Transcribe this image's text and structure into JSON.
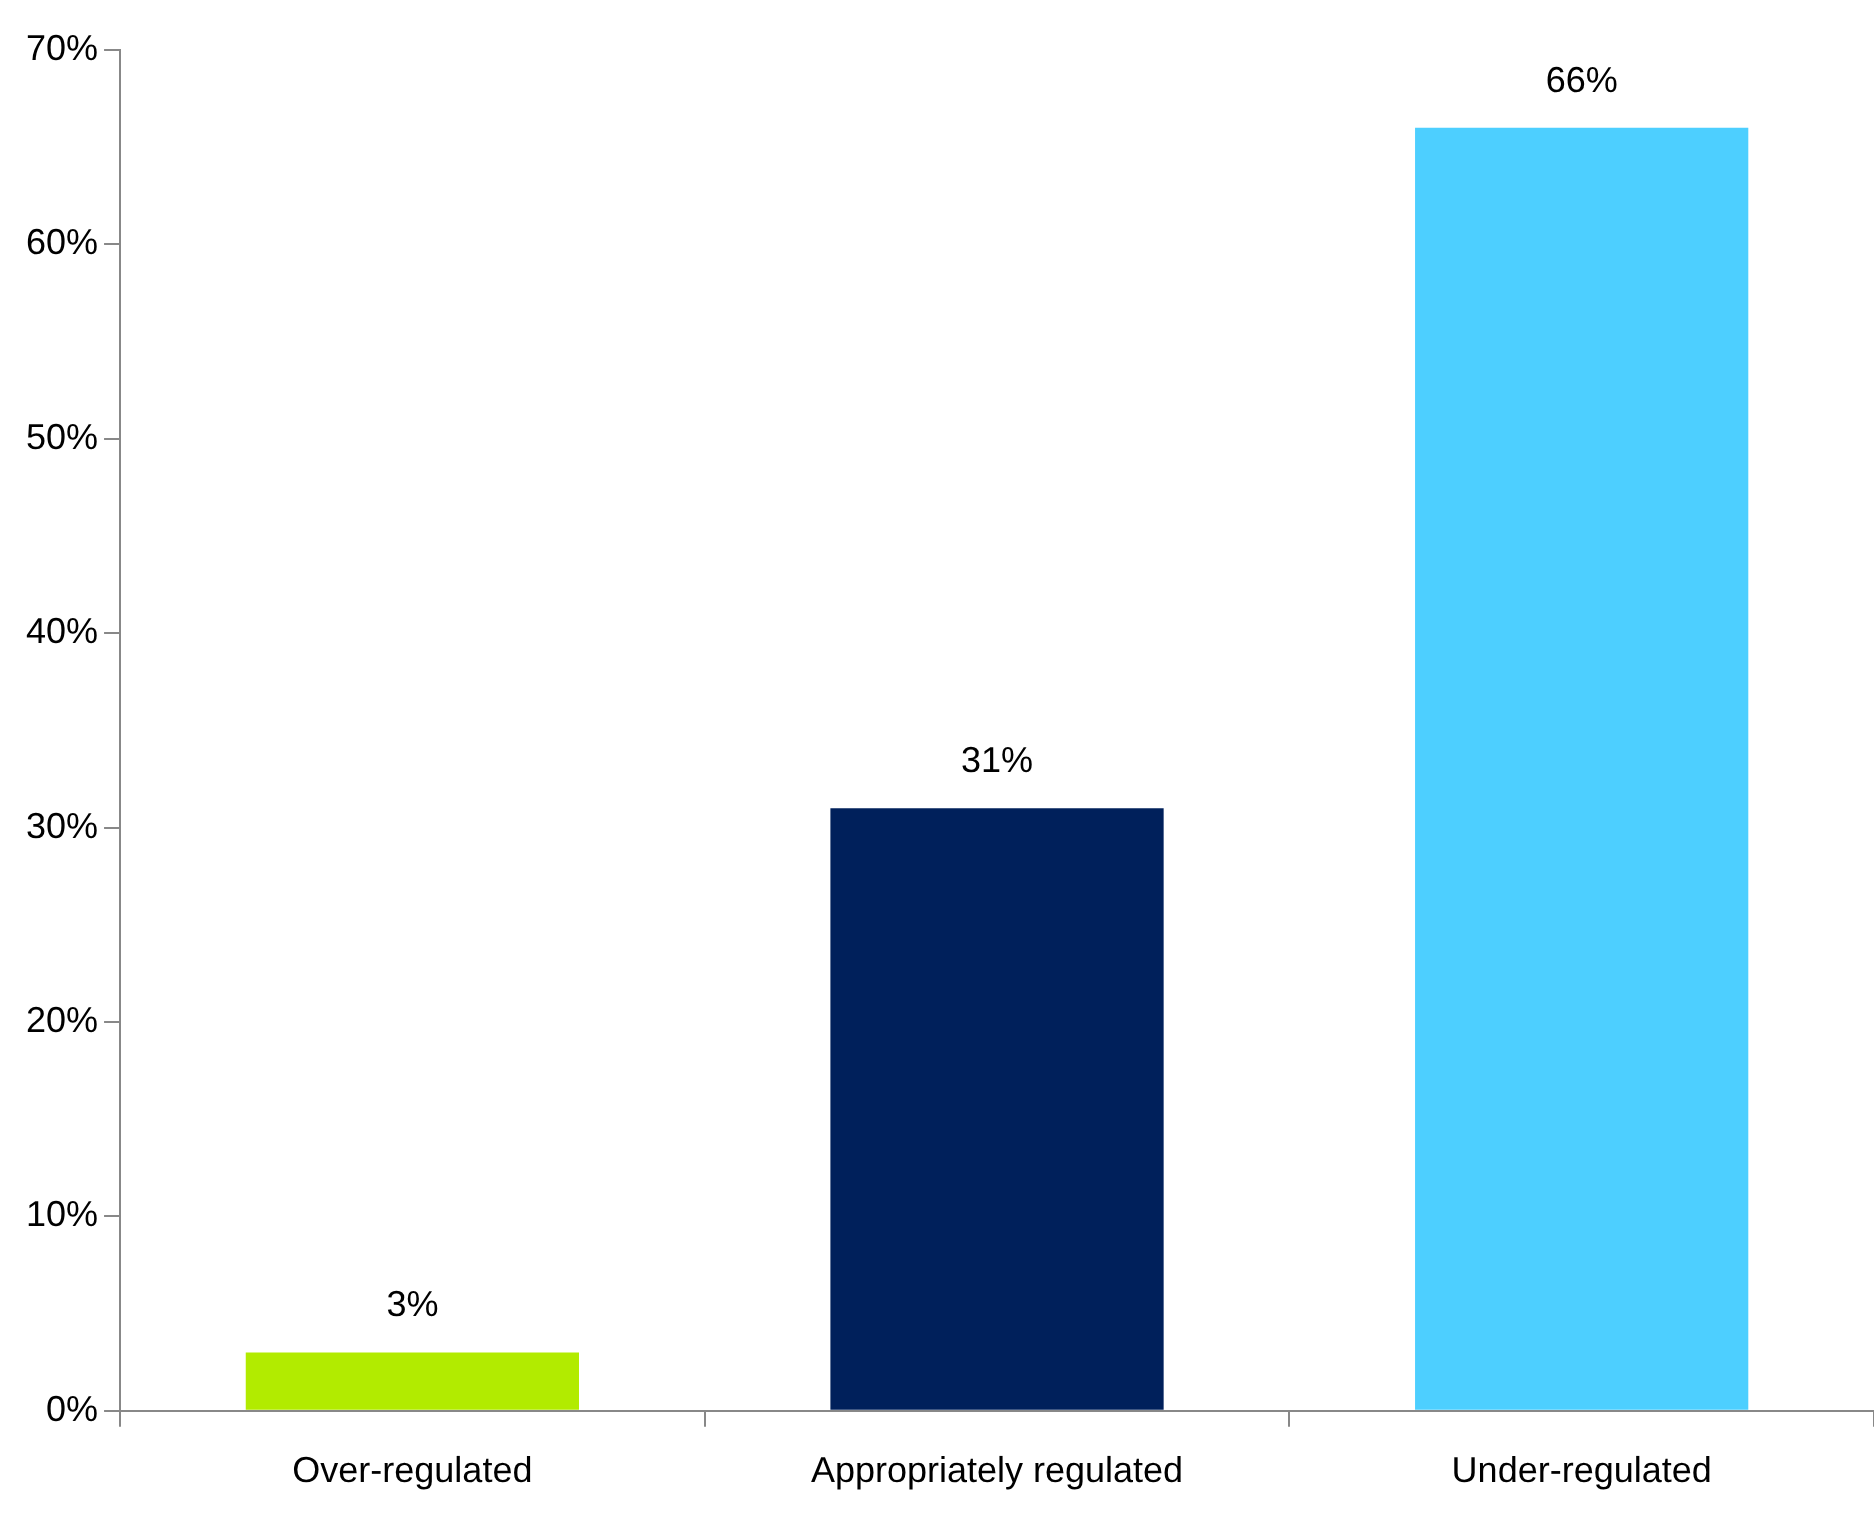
{
  "chart_data": {
    "type": "bar",
    "categories": [
      "Over-regulated",
      "Appropriately regulated",
      "Under-regulated"
    ],
    "values": [
      3,
      31,
      66
    ],
    "colors": [
      "#b2eb00",
      "#00205b",
      "#4dcfff"
    ],
    "value_labels": [
      "3%",
      "31%",
      "66%"
    ],
    "ylim": [
      0,
      70
    ],
    "yticks": [
      {
        "value": 0,
        "label": "0%"
      },
      {
        "value": 10,
        "label": "10%"
      },
      {
        "value": 20,
        "label": "20%"
      },
      {
        "value": 30,
        "label": "30%"
      },
      {
        "value": 40,
        "label": "40%"
      },
      {
        "value": 50,
        "label": "50%"
      },
      {
        "value": 60,
        "label": "60%"
      },
      {
        "value": 70,
        "label": "70%"
      }
    ],
    "grid": false,
    "legend": false
  }
}
